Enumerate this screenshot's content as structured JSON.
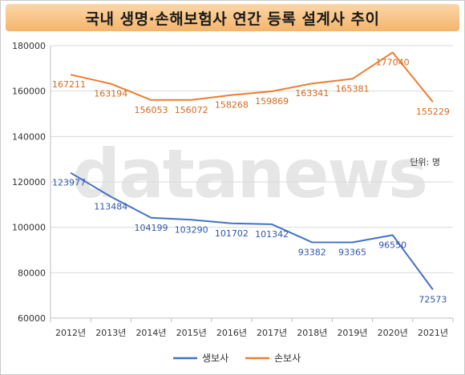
{
  "chart_data": {
    "type": "line",
    "title": "국내 생명·손해보험사 연간 등록 설계사 추이",
    "unit_note": "단위: 명",
    "watermark": "datanews",
    "categories": [
      "2012년",
      "2013년",
      "2014년",
      "2015년",
      "2016년",
      "2017년",
      "2018년",
      "2019년",
      "2020년",
      "2021년"
    ],
    "ylim": [
      60000,
      180000
    ],
    "yticks": [
      "60000",
      "80000",
      "100000",
      "120000",
      "140000",
      "160000",
      "180000"
    ],
    "legend_position": "bottom",
    "grid": true,
    "series": [
      {
        "name": "생보사",
        "color": "#4472c4",
        "label_color": "#2f56a8",
        "values": [
          123977,
          113484,
          104199,
          103290,
          101702,
          101342,
          93382,
          93365,
          96550,
          72573
        ],
        "labels": [
          "123977",
          "113484",
          "104199",
          "103290",
          "101702",
          "101342",
          "93382",
          "93365",
          "96550",
          "72573"
        ]
      },
      {
        "name": "손보사",
        "color": "#ed7d31",
        "label_color": "#d46a1e",
        "values": [
          167211,
          163194,
          156053,
          156072,
          158268,
          159869,
          163341,
          165381,
          177040,
          155229
        ],
        "labels": [
          "167211",
          "163194",
          "156053",
          "156072",
          "158268",
          "159869",
          "163341",
          "165381",
          "177040",
          "155229"
        ]
      }
    ]
  }
}
